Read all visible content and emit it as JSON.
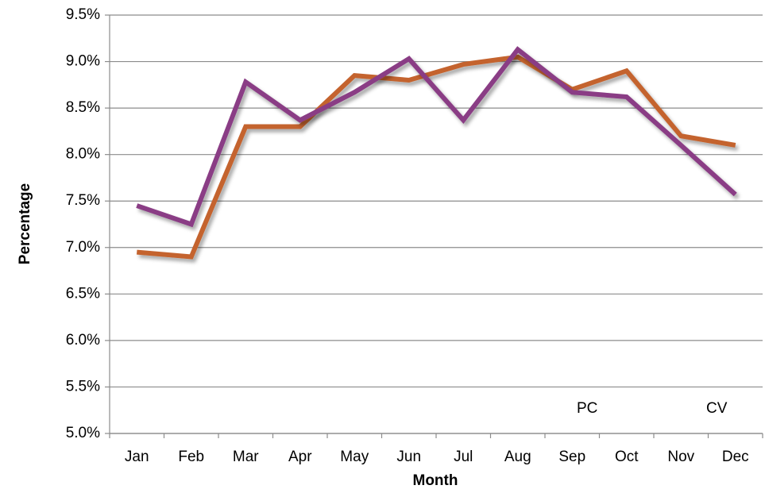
{
  "chart_data": {
    "type": "line",
    "x_label": "Month",
    "y_label": "Percentage",
    "categories": [
      "Jan",
      "Feb",
      "Mar",
      "Apr",
      "May",
      "Jun",
      "Jul",
      "Aug",
      "Sep",
      "Oct",
      "Nov",
      "Dec"
    ],
    "series": [
      {
        "name": "PC",
        "color": "#c4632f",
        "values": [
          6.95,
          6.9,
          8.3,
          8.3,
          8.85,
          8.8,
          8.97,
          9.05,
          8.7,
          8.9,
          8.2,
          8.1
        ]
      },
      {
        "name": "CV",
        "color": "#8a3d85",
        "values": [
          7.45,
          7.25,
          8.78,
          8.37,
          8.67,
          9.03,
          8.37,
          9.13,
          8.67,
          8.62,
          8.1,
          7.57
        ]
      }
    ],
    "ylim": [
      5.0,
      9.5
    ],
    "yticks": [
      {
        "value": 5.0,
        "label": "5.0%"
      },
      {
        "value": 5.5,
        "label": "5.5%"
      },
      {
        "value": 6.0,
        "label": "6.0%"
      },
      {
        "value": 6.5,
        "label": "6.5%"
      },
      {
        "value": 7.0,
        "label": "7.0%"
      },
      {
        "value": 7.5,
        "label": "7.5%"
      },
      {
        "value": 8.0,
        "label": "8.0%"
      },
      {
        "value": 8.5,
        "label": "8.5%"
      },
      {
        "value": 9.0,
        "label": "9.0%"
      },
      {
        "value": 9.5,
        "label": "9.5%"
      }
    ],
    "grid": true,
    "legend": "lower right"
  }
}
